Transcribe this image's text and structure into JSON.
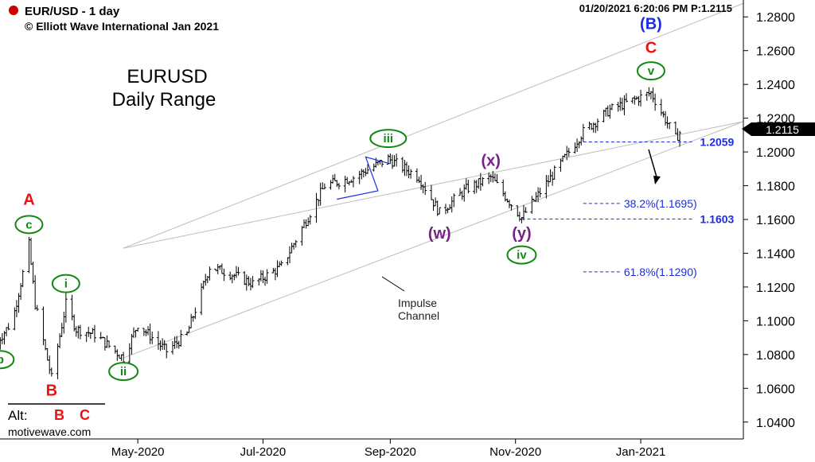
{
  "header": {
    "symbol": "EUR/USD - 1 day",
    "copyright": "© Elliott Wave International Jan 2021",
    "timestamp": "01/20/2021 6:20:06 PM  P:1.2115",
    "status_color": "#cc0000"
  },
  "title": {
    "line1": "EURUSD",
    "line2": "Daily Range"
  },
  "watermark": "motivewave.com",
  "alt_label": {
    "prefix": "Alt:",
    "b": "B",
    "c": "C"
  },
  "channel_label": {
    "line1": "Impulse",
    "line2": "Channel"
  },
  "last_price": "1.2115",
  "colors": {
    "red": "#ee1111",
    "green": "#118811",
    "purple": "#7a1f8c",
    "blue": "#1a2ee0",
    "bars": "#000000",
    "channel": "#bdbdbd"
  },
  "chart_data": {
    "type": "bar",
    "instrument": "EUR/USD",
    "ylim": [
      1.03,
      1.29
    ],
    "y_ticks": [
      "1.0400",
      "1.0600",
      "1.0800",
      "1.1000",
      "1.1200",
      "1.1400",
      "1.1600",
      "1.1800",
      "1.2000",
      "1.2200",
      "1.2400",
      "1.2600",
      "1.2800"
    ],
    "x_ticks": [
      {
        "label": "May-2020",
        "date": "2020-05-01"
      },
      {
        "label": "Jul-2020",
        "date": "2020-07-01"
      },
      {
        "label": "Sep-2020",
        "date": "2020-09-01"
      },
      {
        "label": "Nov-2020",
        "date": "2020-11-01"
      },
      {
        "label": "Jan-2021",
        "date": "2021-01-01"
      }
    ],
    "xlim": [
      "2020-02-20",
      "2021-02-20"
    ],
    "path": [
      [
        "2020-02-21",
        1.085
      ],
      [
        "2020-03-01",
        1.1
      ],
      [
        "2020-03-09",
        1.145
      ],
      [
        "2020-03-12",
        1.11
      ],
      [
        "2020-03-20",
        1.066
      ],
      [
        "2020-03-27",
        1.11
      ],
      [
        "2020-04-01",
        1.095
      ],
      [
        "2020-04-10",
        1.092
      ],
      [
        "2020-04-24",
        1.078
      ],
      [
        "2020-05-01",
        1.098
      ],
      [
        "2020-05-15",
        1.082
      ],
      [
        "2020-05-25",
        1.092
      ],
      [
        "2020-06-05",
        1.132
      ],
      [
        "2020-06-15",
        1.128
      ],
      [
        "2020-06-26",
        1.122
      ],
      [
        "2020-07-10",
        1.132
      ],
      [
        "2020-07-31",
        1.18
      ],
      [
        "2020-08-14",
        1.185
      ],
      [
        "2020-08-31",
        1.196
      ],
      [
        "2020-09-15",
        1.185
      ],
      [
        "2020-09-25",
        1.164
      ],
      [
        "2020-10-08",
        1.178
      ],
      [
        "2020-10-20",
        1.185
      ],
      [
        "2020-11-04",
        1.161
      ],
      [
        "2020-11-20",
        1.188
      ],
      [
        "2020-12-04",
        1.212
      ],
      [
        "2020-12-17",
        1.225
      ],
      [
        "2021-01-06",
        1.235
      ],
      [
        "2021-01-18",
        1.208
      ],
      [
        "2021-01-20",
        1.2115
      ]
    ],
    "annotations": [
      {
        "text": "A",
        "date": "2020-03-09",
        "price": 1.172,
        "color": "red",
        "style": "plain"
      },
      {
        "text": "c",
        "date": "2020-03-09",
        "price": 1.157,
        "color": "green",
        "style": "circle"
      },
      {
        "text": "b",
        "date": "2020-02-24",
        "price": 1.077,
        "color": "green",
        "style": "circle"
      },
      {
        "text": "i",
        "date": "2020-03-27",
        "price": 1.122,
        "color": "green",
        "style": "circle"
      },
      {
        "text": "B",
        "date": "2020-03-20",
        "price": 1.059,
        "color": "red",
        "style": "plain"
      },
      {
        "text": "ii",
        "date": "2020-04-24",
        "price": 1.07,
        "color": "green",
        "style": "circle"
      },
      {
        "text": "iii",
        "date": "2020-08-31",
        "price": 1.208,
        "color": "green",
        "style": "circle"
      },
      {
        "text": "(w)",
        "date": "2020-09-25",
        "price": 1.152,
        "color": "purple",
        "style": "plain"
      },
      {
        "text": "(x)",
        "date": "2020-10-20",
        "price": 1.195,
        "color": "purple",
        "style": "plain"
      },
      {
        "text": "(y)",
        "date": "2020-11-04",
        "price": 1.152,
        "color": "purple",
        "style": "plain"
      },
      {
        "text": "iv",
        "date": "2020-11-04",
        "price": 1.139,
        "color": "green",
        "style": "circle"
      },
      {
        "text": "v",
        "date": "2021-01-06",
        "price": 1.248,
        "color": "green",
        "style": "circle"
      },
      {
        "text": "C",
        "date": "2021-01-06",
        "price": 1.262,
        "color": "red",
        "style": "plain"
      },
      {
        "text": "(B)",
        "date": "2021-01-06",
        "price": 1.276,
        "color": "blue",
        "style": "plain"
      }
    ],
    "levels": [
      {
        "price": 1.2059,
        "label": "1.2059",
        "from": "2020-12-04",
        "to": "2021-01-26",
        "bold": true
      },
      {
        "price": 1.1695,
        "label": "38.2%(1.1695)",
        "from": "2020-12-04",
        "to": "2021-02-18",
        "bold": false
      },
      {
        "price": 1.1603,
        "label": "1.1603",
        "from": "2020-11-04",
        "to": "2021-01-26",
        "bold": true
      },
      {
        "price": 1.129,
        "label": "61.8%(1.1290)",
        "from": "2020-12-04",
        "to": "2021-02-18",
        "bold": false
      }
    ],
    "channel": {
      "upper": [
        [
          "2020-04-24",
          1.143
        ],
        [
          "2021-02-20",
          1.288
        ]
      ],
      "lower": [
        [
          "2020-04-24",
          1.078
        ],
        [
          "2021-02-20",
          1.218
        ]
      ],
      "inner": [
        [
          "2020-04-24",
          1.143
        ],
        [
          "2021-02-20",
          1.218
        ]
      ]
    }
  }
}
